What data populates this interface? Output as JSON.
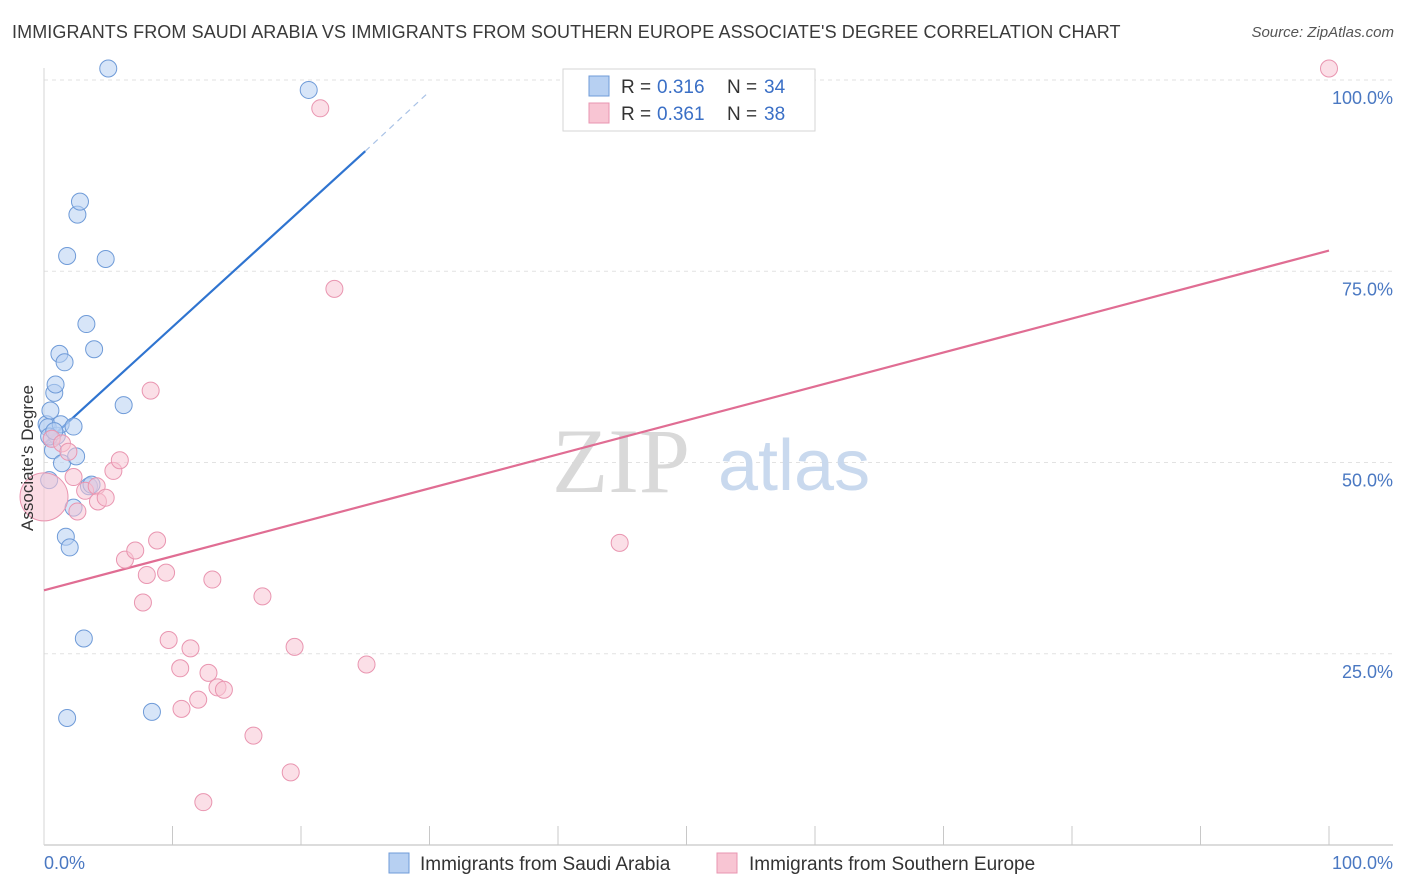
{
  "title": "IMMIGRANTS FROM SAUDI ARABIA VS IMMIGRANTS FROM SOUTHERN EUROPE ASSOCIATE'S DEGREE CORRELATION CHART",
  "source": "Source: ZipAtlas.com",
  "watermark": {
    "zip": "ZIP",
    "atlas": "atlas"
  },
  "colors": {
    "blue_fill": "#b7d0f2",
    "blue_stroke": "#6f9bd8",
    "blue_line": "#2f74d0",
    "pink_fill": "#f8c5d3",
    "pink_stroke": "#e995b0",
    "pink_line": "#e06d93",
    "tick": "#4a78c2",
    "grid": "#e2e2e2"
  },
  "chart_data": {
    "type": "scatter",
    "ylabel": "Associate's Degree",
    "xlim": [
      0,
      100
    ],
    "ylim": [
      0,
      100
    ],
    "x_tick_labels": [
      "0.0%",
      "100.0%"
    ],
    "y_ticks": [
      {
        "value": 25,
        "label": "25.0%"
      },
      {
        "value": 50,
        "label": "50.0%"
      },
      {
        "value": 75,
        "label": "75.0%"
      },
      {
        "value": 100,
        "label": "100.0%"
      }
    ],
    "legend": {
      "rows": [
        {
          "r_label": "R =",
          "r": "0.316",
          "n_label": "N =",
          "n": "34",
          "color": "blue"
        },
        {
          "r_label": "R =",
          "r": "0.361",
          "n_label": "N =",
          "n": "38",
          "color": "pink"
        }
      ]
    },
    "series": [
      {
        "name": "Immigrants from Saudi Arabia",
        "color": "blue",
        "trend": {
          "x0": 0,
          "y0": 52.4,
          "x1": 25,
          "y1": 90.7,
          "dash_to_x": 30,
          "dash_to_y": 98.5
        },
        "points": [
          [
            0.2,
            55.0
          ],
          [
            0.3,
            54.6
          ],
          [
            0.4,
            47.7
          ],
          [
            0.5,
            56.8
          ],
          [
            0.6,
            53.1
          ],
          [
            0.7,
            51.6
          ],
          [
            0.8,
            59.1
          ],
          [
            0.9,
            60.2
          ],
          [
            1.0,
            53.5
          ],
          [
            1.2,
            64.2
          ],
          [
            1.3,
            55.0
          ],
          [
            1.4,
            49.9
          ],
          [
            1.6,
            63.1
          ],
          [
            1.7,
            40.3
          ],
          [
            1.8,
            77.0
          ],
          [
            2.0,
            38.9
          ],
          [
            2.3,
            54.7
          ],
          [
            2.5,
            50.8
          ],
          [
            2.6,
            82.4
          ],
          [
            2.8,
            84.1
          ],
          [
            3.1,
            27.0
          ],
          [
            3.3,
            68.1
          ],
          [
            3.5,
            46.9
          ],
          [
            3.7,
            47.1
          ],
          [
            3.9,
            64.8
          ],
          [
            4.8,
            76.6
          ],
          [
            6.2,
            57.5
          ],
          [
            8.4,
            17.4
          ],
          [
            1.8,
            16.6
          ],
          [
            5.0,
            101.5
          ],
          [
            20.6,
            98.7
          ],
          [
            0.4,
            53.4
          ],
          [
            0.8,
            54.1
          ],
          [
            2.3,
            44.1
          ]
        ]
      },
      {
        "name": "Immigrants from Southern Europe",
        "color": "pink",
        "trend": {
          "x0": 0,
          "y0": 33.3,
          "x1": 100,
          "y1": 77.7
        },
        "points": [
          [
            0.0,
            45.5
          ],
          [
            0.6,
            53.1
          ],
          [
            1.4,
            52.5
          ],
          [
            1.9,
            51.4
          ],
          [
            2.3,
            48.1
          ],
          [
            2.6,
            43.6
          ],
          [
            3.2,
            46.3
          ],
          [
            4.1,
            46.9
          ],
          [
            4.2,
            44.9
          ],
          [
            4.8,
            45.4
          ],
          [
            5.4,
            48.9
          ],
          [
            5.9,
            50.3
          ],
          [
            6.3,
            37.3
          ],
          [
            7.1,
            38.5
          ],
          [
            7.7,
            31.7
          ],
          [
            8.0,
            35.3
          ],
          [
            8.3,
            59.4
          ],
          [
            8.8,
            39.8
          ],
          [
            9.5,
            35.6
          ],
          [
            9.7,
            26.8
          ],
          [
            10.6,
            23.1
          ],
          [
            10.7,
            17.8
          ],
          [
            11.4,
            25.7
          ],
          [
            12.0,
            19.0
          ],
          [
            12.4,
            5.6
          ],
          [
            12.8,
            22.5
          ],
          [
            13.1,
            34.7
          ],
          [
            13.5,
            20.6
          ],
          [
            14.0,
            20.3
          ],
          [
            16.3,
            14.3
          ],
          [
            17.0,
            32.5
          ],
          [
            19.2,
            9.5
          ],
          [
            19.5,
            25.9
          ],
          [
            21.5,
            96.3
          ],
          [
            22.6,
            72.7
          ],
          [
            25.1,
            23.6
          ],
          [
            44.8,
            39.5
          ],
          [
            100.0,
            101.5
          ]
        ]
      }
    ]
  },
  "bottom_legend": [
    {
      "label": "Immigrants from Saudi Arabia",
      "color": "blue"
    },
    {
      "label": "Immigrants from Southern Europe",
      "color": "pink"
    }
  ]
}
